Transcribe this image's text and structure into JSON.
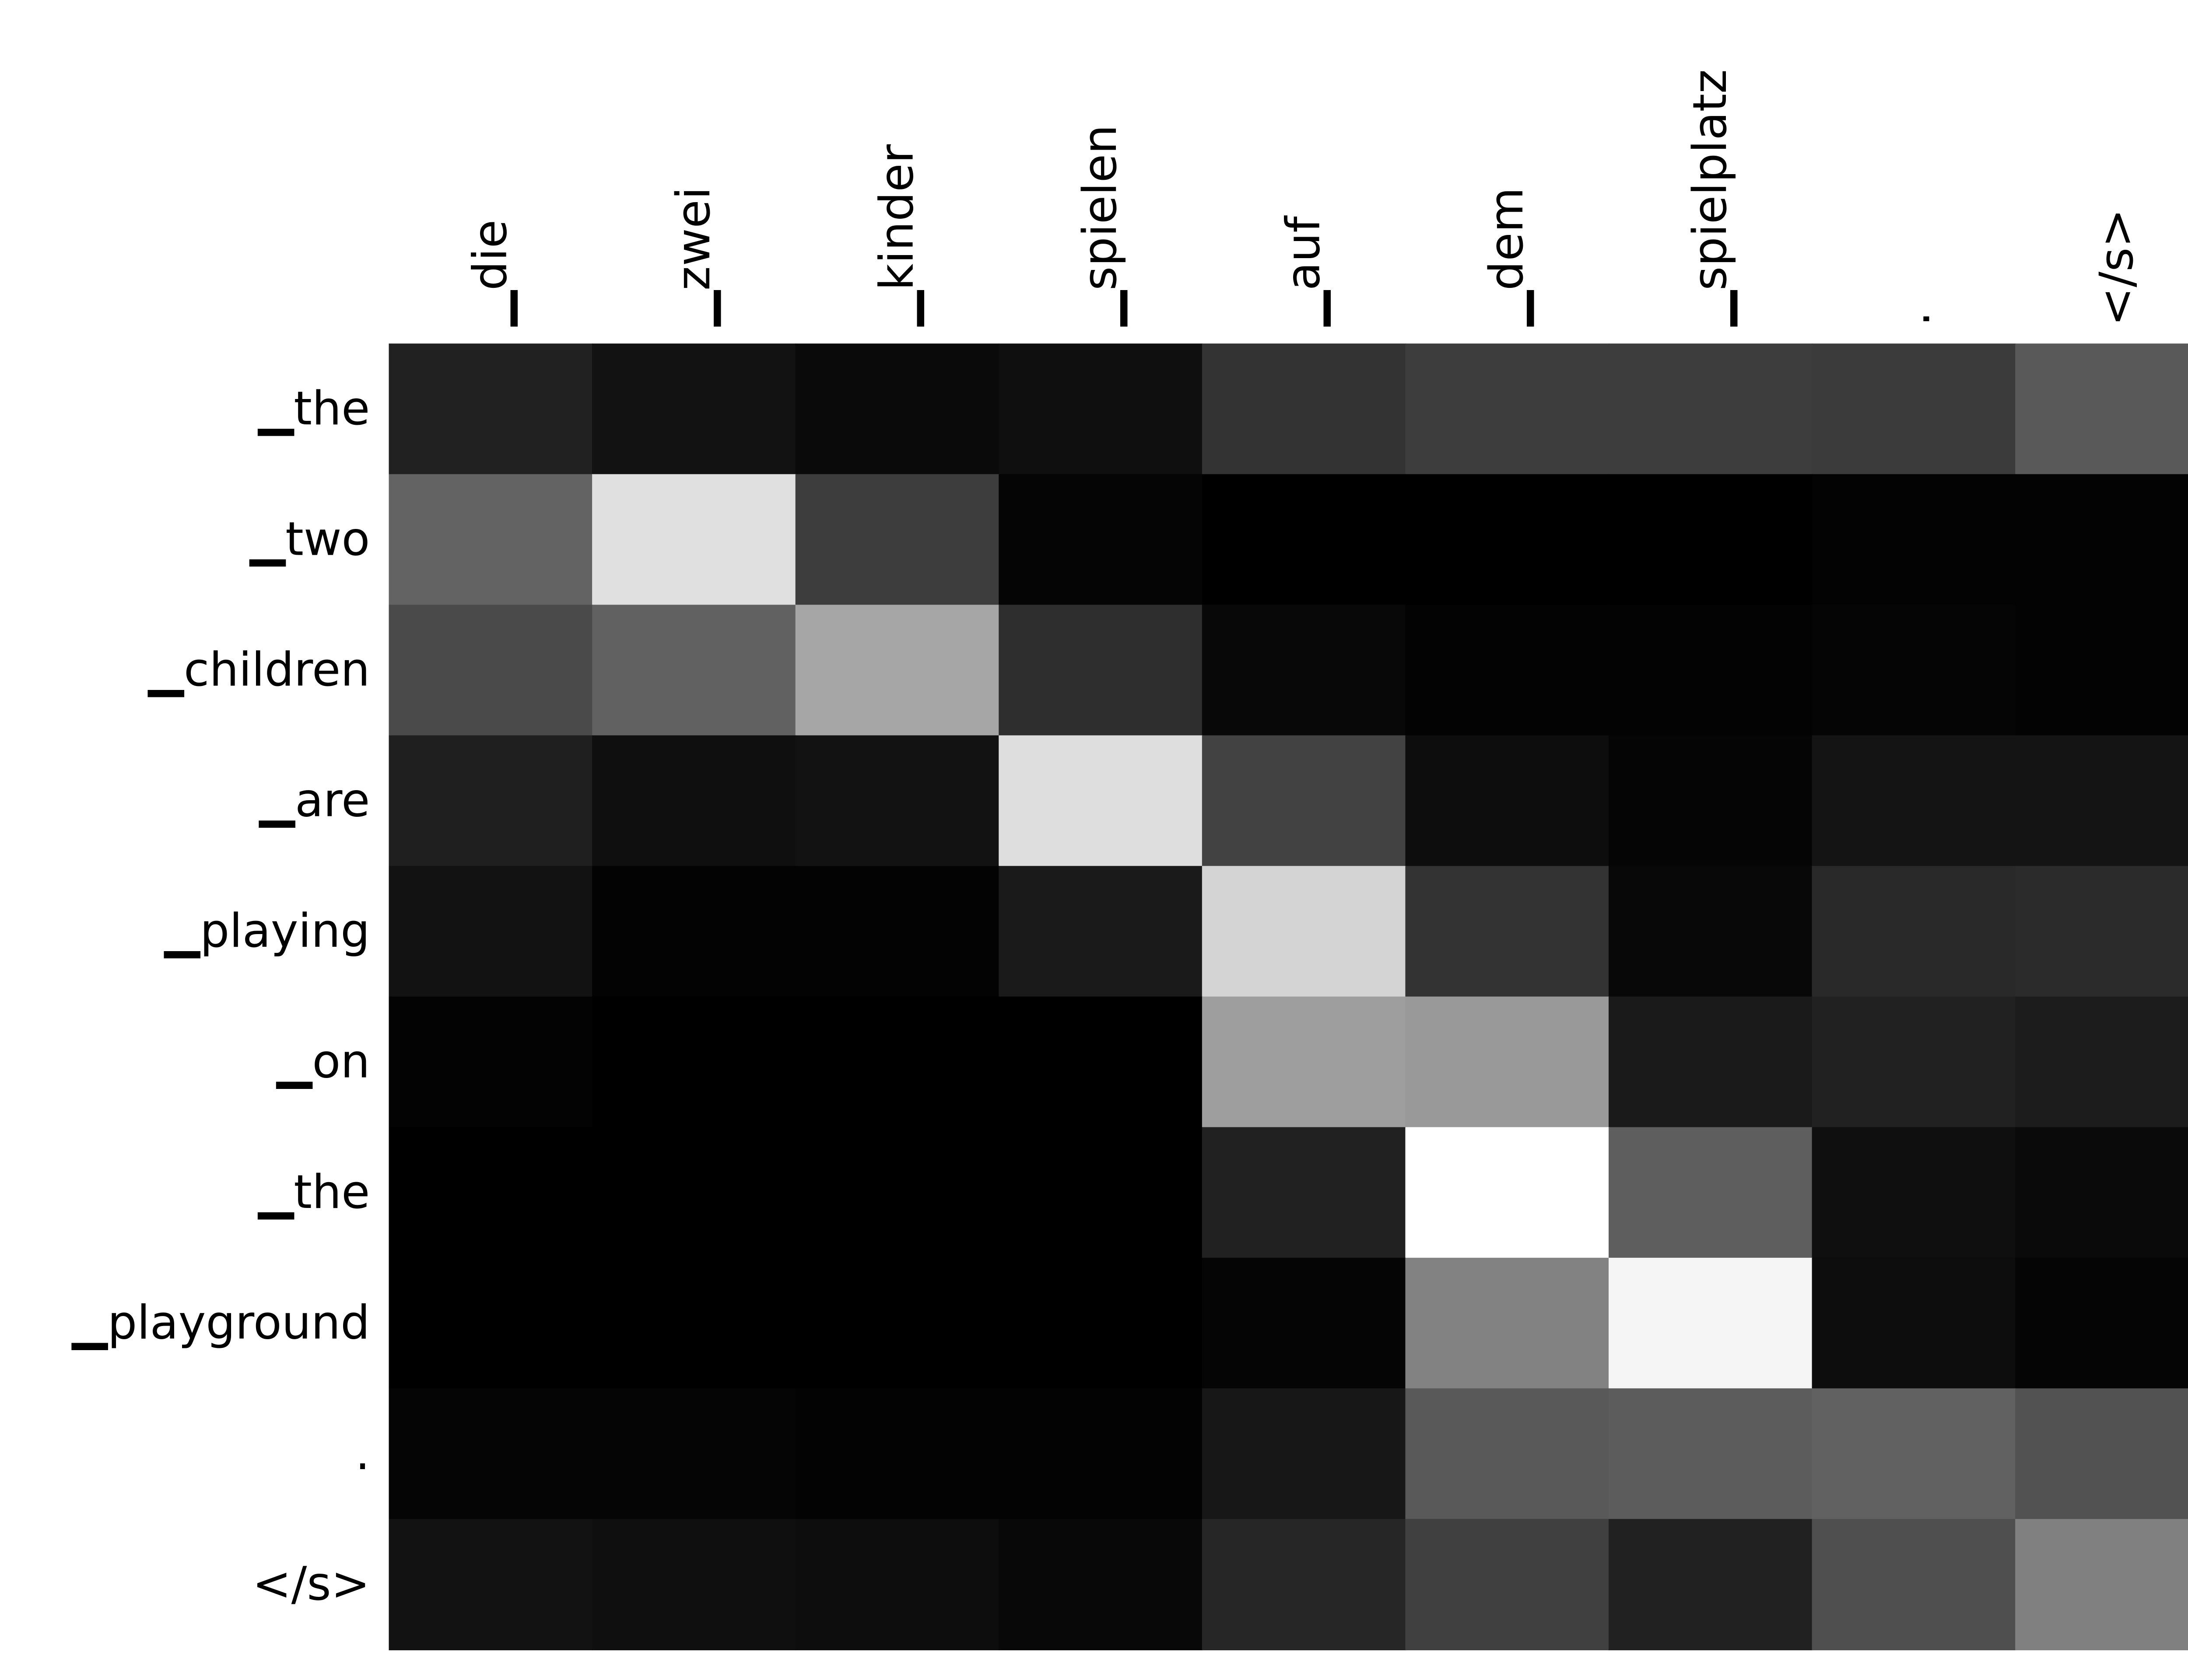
{
  "chart_data": {
    "type": "heatmap",
    "colormap": "gray",
    "x_categories": [
      "▁die",
      "▁zwei",
      "▁kinder",
      "▁spielen",
      "▁auf",
      "▁dem",
      "▁spielplatz",
      ".",
      "</s>"
    ],
    "y_categories": [
      "▁the",
      "▁two",
      "▁children",
      "▁are",
      "▁playing",
      "▁on",
      "▁the",
      "▁playground",
      ".",
      "</s>"
    ],
    "values": [
      [
        0.13,
        0.07,
        0.04,
        0.06,
        0.2,
        0.24,
        0.24,
        0.23,
        0.35
      ],
      [
        0.39,
        0.88,
        0.24,
        0.02,
        0.0,
        0.0,
        0.0,
        0.01,
        0.01
      ],
      [
        0.29,
        0.38,
        0.65,
        0.18,
        0.03,
        0.01,
        0.01,
        0.02,
        0.01
      ],
      [
        0.12,
        0.06,
        0.07,
        0.87,
        0.26,
        0.05,
        0.02,
        0.08,
        0.08
      ],
      [
        0.07,
        0.01,
        0.01,
        0.1,
        0.83,
        0.2,
        0.03,
        0.16,
        0.17
      ],
      [
        0.01,
        0.0,
        0.0,
        0.0,
        0.62,
        0.6,
        0.1,
        0.13,
        0.11
      ],
      [
        0.0,
        0.0,
        0.0,
        0.0,
        0.13,
        1.0,
        0.37,
        0.06,
        0.04
      ],
      [
        0.0,
        0.0,
        0.0,
        0.0,
        0.02,
        0.51,
        0.96,
        0.05,
        0.02
      ],
      [
        0.02,
        0.02,
        0.01,
        0.01,
        0.09,
        0.35,
        0.36,
        0.38,
        0.32
      ],
      [
        0.07,
        0.06,
        0.05,
        0.03,
        0.15,
        0.25,
        0.13,
        0.31,
        0.5
      ]
    ]
  }
}
